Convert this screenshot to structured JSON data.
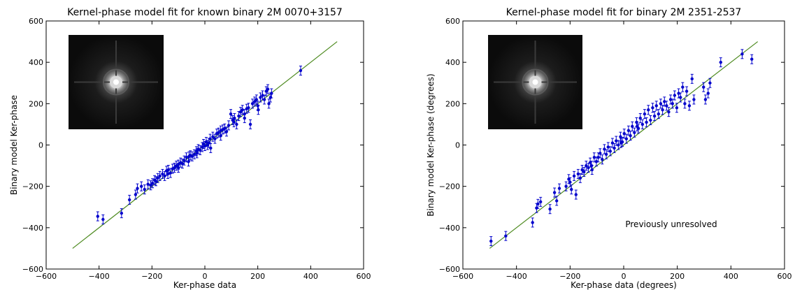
{
  "chart_data": [
    {
      "type": "scatter",
      "title": "Kernel-phase model fit for known binary 2M 0070+3157",
      "xlabel": "Ker-phase data",
      "ylabel": "Binary model Ker-phase",
      "xlim": [
        -600,
        600
      ],
      "ylim": [
        -600,
        600
      ],
      "xticks": [
        "−600",
        "−400",
        "−200",
        "0",
        "200",
        "400",
        "600"
      ],
      "yticks": [
        "600",
        "400",
        "200",
        "0",
        "−200",
        "−400",
        "−600"
      ],
      "grid": false,
      "fit_line": {
        "x": [
          -500,
          500
        ],
        "y": [
          -500,
          500
        ],
        "color": "#4d8a1f"
      },
      "marker_color": "#0000cc",
      "inset": "psf-image",
      "annotation": "",
      "points": [
        [
          -405,
          -345
        ],
        [
          -385,
          -360
        ],
        [
          -315,
          -330
        ],
        [
          -285,
          -265
        ],
        [
          -262,
          -240
        ],
        [
          -255,
          -210
        ],
        [
          -240,
          -200
        ],
        [
          -228,
          -215
        ],
        [
          -215,
          -190
        ],
        [
          -205,
          -195
        ],
        [
          -198,
          -185
        ],
        [
          -185,
          -175
        ],
        [
          -178,
          -160
        ],
        [
          -170,
          -150
        ],
        [
          -160,
          -140
        ],
        [
          -152,
          -150
        ],
        [
          -145,
          -125
        ],
        [
          -138,
          -120
        ],
        [
          -130,
          -135
        ],
        [
          -122,
          -115
        ],
        [
          -115,
          -110
        ],
        [
          -108,
          -100
        ],
        [
          -100,
          -95
        ],
        [
          -92,
          -85
        ],
        [
          -85,
          -90
        ],
        [
          -78,
          -75
        ],
        [
          -70,
          -60
        ],
        [
          -62,
          -80
        ],
        [
          -55,
          -50
        ],
        [
          -48,
          -55
        ],
        [
          -40,
          -45
        ],
        [
          -32,
          -30
        ],
        [
          -25,
          -20
        ],
        [
          -18,
          -25
        ],
        [
          -10,
          -10
        ],
        [
          -5,
          5
        ],
        [
          0,
          -5
        ],
        [
          5,
          15
        ],
        [
          10,
          0
        ],
        [
          15,
          10
        ],
        [
          22,
          -15
        ],
        [
          30,
          40
        ],
        [
          38,
          30
        ],
        [
          45,
          55
        ],
        [
          52,
          60
        ],
        [
          60,
          45
        ],
        [
          68,
          75
        ],
        [
          75,
          80
        ],
        [
          82,
          65
        ],
        [
          90,
          95
        ],
        [
          98,
          150
        ],
        [
          105,
          120
        ],
        [
          112,
          130
        ],
        [
          120,
          100
        ],
        [
          128,
          140
        ],
        [
          135,
          160
        ],
        [
          142,
          170
        ],
        [
          150,
          150
        ],
        [
          158,
          175
        ],
        [
          165,
          180
        ],
        [
          172,
          100
        ],
        [
          180,
          200
        ],
        [
          188,
          210
        ],
        [
          195,
          220
        ],
        [
          202,
          170
        ],
        [
          210,
          230
        ],
        [
          218,
          240
        ],
        [
          225,
          220
        ],
        [
          232,
          260
        ],
        [
          238,
          270
        ],
        [
          242,
          200
        ],
        [
          248,
          230
        ],
        [
          252,
          250
        ],
        [
          362,
          360
        ],
        [
          -30,
          -40
        ],
        [
          -60,
          -55
        ],
        [
          -100,
          -110
        ],
        [
          -140,
          -140
        ],
        [
          -190,
          -170
        ],
        [
          20,
          30
        ],
        [
          60,
          70
        ],
        [
          110,
          110
        ],
        [
          150,
          130
        ],
        [
          200,
          190
        ]
      ]
    },
    {
      "type": "scatter",
      "title": "Kernel-phase model fit for binary 2M 2351-2537",
      "xlabel": "Ker-phase data (degrees)",
      "ylabel": "Binary model Ker-phase (degrees)",
      "xlim": [
        -600,
        600
      ],
      "ylim": [
        -600,
        600
      ],
      "xticks": [
        "−600",
        "−400",
        "−200",
        "0",
        "200",
        "400",
        "600"
      ],
      "yticks": [
        "600",
        "400",
        "200",
        "0",
        "−200",
        "−400",
        "−600"
      ],
      "grid": false,
      "fit_line": {
        "x": [
          -500,
          500
        ],
        "y": [
          -500,
          500
        ],
        "color": "#4d8a1f"
      },
      "marker_color": "#0000cc",
      "inset": "psf-image",
      "annotation": "Previously unresolved",
      "points": [
        [
          -495,
          -465
        ],
        [
          -440,
          -440
        ],
        [
          -340,
          -375
        ],
        [
          -325,
          -305
        ],
        [
          -320,
          -285
        ],
        [
          -310,
          -275
        ],
        [
          -275,
          -310
        ],
        [
          -258,
          -230
        ],
        [
          -250,
          -270
        ],
        [
          -240,
          -210
        ],
        [
          -215,
          -200
        ],
        [
          -205,
          -165
        ],
        [
          -200,
          -180
        ],
        [
          -195,
          -215
        ],
        [
          -185,
          -150
        ],
        [
          -178,
          -240
        ],
        [
          -170,
          -140
        ],
        [
          -162,
          -160
        ],
        [
          -155,
          -120
        ],
        [
          -148,
          -130
        ],
        [
          -140,
          -100
        ],
        [
          -132,
          -110
        ],
        [
          -125,
          -85
        ],
        [
          -118,
          -120
        ],
        [
          -110,
          -60
        ],
        [
          -102,
          -80
        ],
        [
          -95,
          -60
        ],
        [
          -88,
          -40
        ],
        [
          -80,
          -70
        ],
        [
          -72,
          -20
        ],
        [
          -65,
          -45
        ],
        [
          -58,
          -10
        ],
        [
          -50,
          -30
        ],
        [
          -42,
          10
        ],
        [
          -35,
          -15
        ],
        [
          -28,
          20
        ],
        [
          -20,
          0
        ],
        [
          -12,
          40
        ],
        [
          -5,
          15
        ],
        [
          2,
          55
        ],
        [
          10,
          30
        ],
        [
          18,
          70
        ],
        [
          25,
          45
        ],
        [
          32,
          90
        ],
        [
          40,
          60
        ],
        [
          48,
          110
        ],
        [
          55,
          80
        ],
        [
          62,
          130
        ],
        [
          70,
          100
        ],
        [
          78,
          150
        ],
        [
          85,
          110
        ],
        [
          92,
          170
        ],
        [
          100,
          120
        ],
        [
          108,
          180
        ],
        [
          115,
          140
        ],
        [
          122,
          190
        ],
        [
          130,
          150
        ],
        [
          138,
          200
        ],
        [
          145,
          170
        ],
        [
          152,
          210
        ],
        [
          160,
          190
        ],
        [
          168,
          160
        ],
        [
          175,
          220
        ],
        [
          182,
          200
        ],
        [
          190,
          240
        ],
        [
          198,
          180
        ],
        [
          205,
          250
        ],
        [
          212,
          230
        ],
        [
          220,
          280
        ],
        [
          228,
          200
        ],
        [
          235,
          260
        ],
        [
          245,
          190
        ],
        [
          255,
          320
        ],
        [
          262,
          220
        ],
        [
          298,
          280
        ],
        [
          305,
          220
        ],
        [
          315,
          250
        ],
        [
          322,
          300
        ],
        [
          362,
          400
        ],
        [
          442,
          440
        ],
        [
          478,
          415
        ],
        [
          -10,
          10
        ],
        [
          50,
          90
        ],
        [
          -120,
          -100
        ]
      ]
    }
  ]
}
